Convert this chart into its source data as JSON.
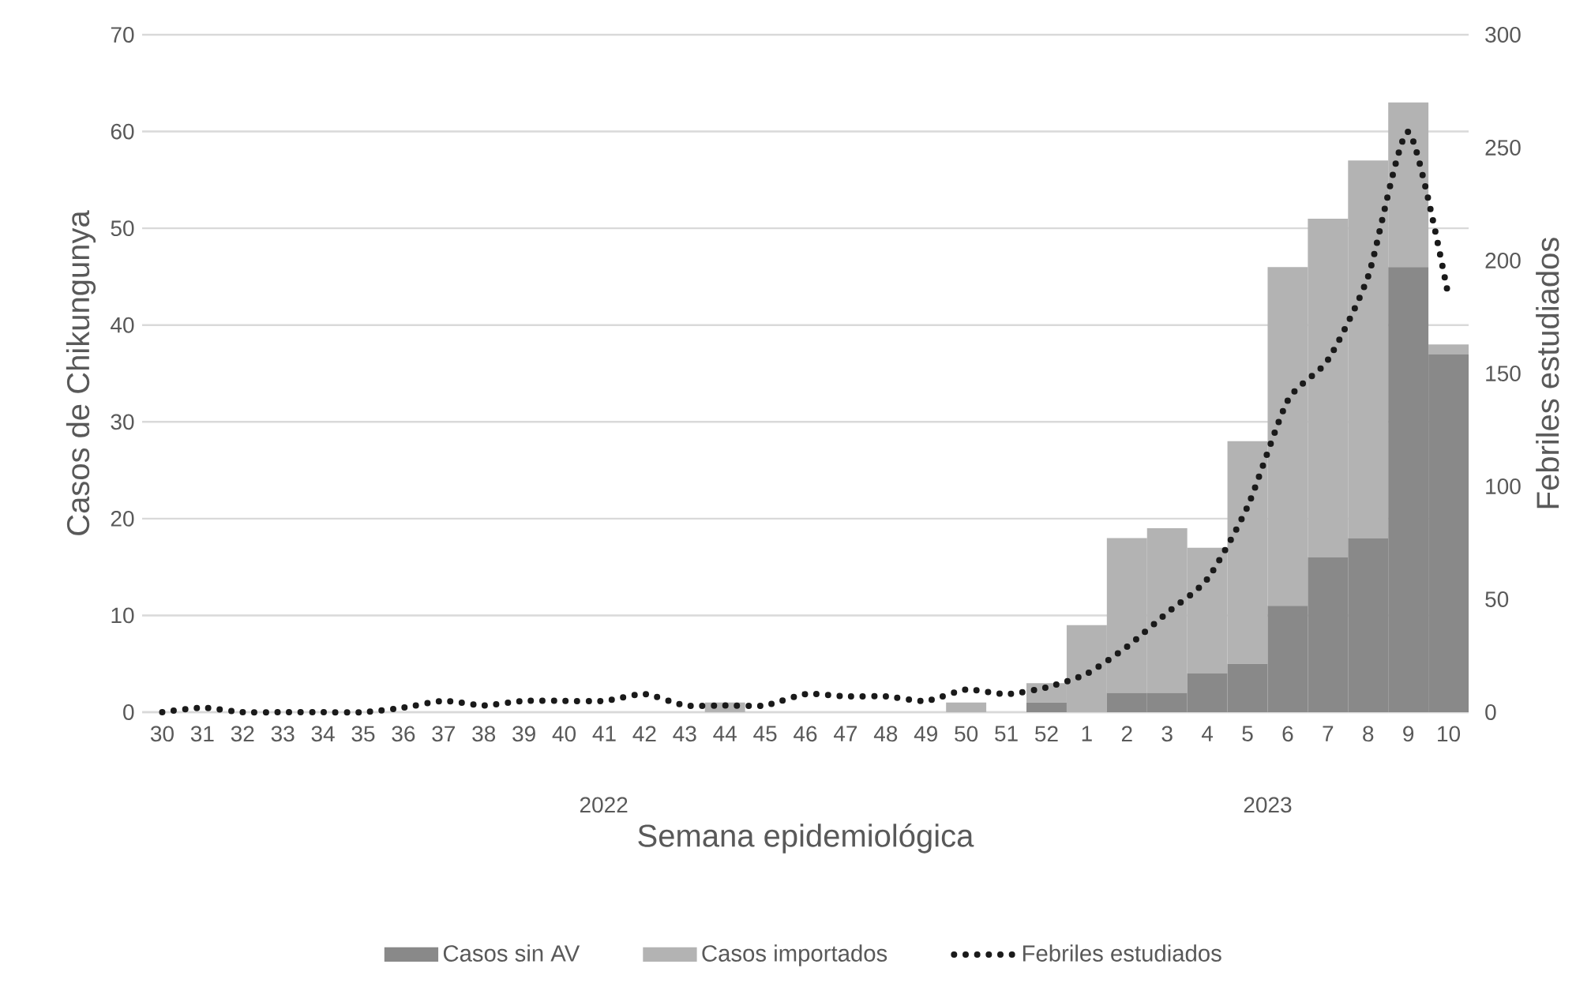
{
  "chart_data": {
    "type": "bar",
    "stacked": true,
    "xlabel": "Semana epidemiológica",
    "ylabel": "Casos de Chikungunya",
    "y2label": "Febriles estudiados",
    "categories": [
      "30",
      "31",
      "32",
      "33",
      "34",
      "35",
      "36",
      "37",
      "38",
      "39",
      "40",
      "41",
      "42",
      "43",
      "44",
      "45",
      "46",
      "47",
      "48",
      "49",
      "50",
      "51",
      "52",
      "1",
      "2",
      "3",
      "4",
      "5",
      "6",
      "7",
      "8",
      "9",
      "10"
    ],
    "series": [
      {
        "name": "Casos sin AV",
        "color": "#898989",
        "values": [
          0,
          0,
          0,
          0,
          0,
          0,
          0,
          0,
          0,
          0,
          0,
          0,
          0,
          0,
          0,
          0,
          0,
          0,
          0,
          0,
          0,
          0,
          1,
          0,
          2,
          2,
          4,
          5,
          11,
          16,
          18,
          46,
          37
        ]
      },
      {
        "name": "Casos importados",
        "color": "#b3b3b3",
        "values": [
          0,
          0,
          0,
          0,
          0,
          0,
          0,
          0,
          0,
          0,
          0,
          0,
          0,
          0,
          1,
          0,
          0,
          0,
          0,
          0,
          1,
          0,
          2,
          9,
          16,
          17,
          13,
          23,
          35,
          35,
          39,
          17,
          1
        ]
      },
      {
        "name": "Febriles estudiados",
        "type": "line",
        "axis": "y2",
        "color": "#1a1a1a",
        "line_style": "dotted",
        "values": [
          0,
          2,
          0,
          0,
          0,
          0,
          2,
          5,
          3,
          5,
          5,
          5,
          8,
          3,
          3,
          3,
          8,
          7,
          7,
          5,
          10,
          8,
          11,
          17,
          29,
          44,
          59,
          91,
          138,
          156,
          193,
          257,
          184
        ]
      }
    ],
    "ylim": [
      0,
      70
    ],
    "yticks": [
      0,
      10,
      20,
      30,
      40,
      50,
      60,
      70
    ],
    "y2lim": [
      0,
      300
    ],
    "y2ticks": [
      0,
      50,
      100,
      150,
      200,
      250,
      300
    ],
    "grid": "y",
    "legend": "bottom",
    "annotations": [
      "2022",
      "2023"
    ]
  }
}
